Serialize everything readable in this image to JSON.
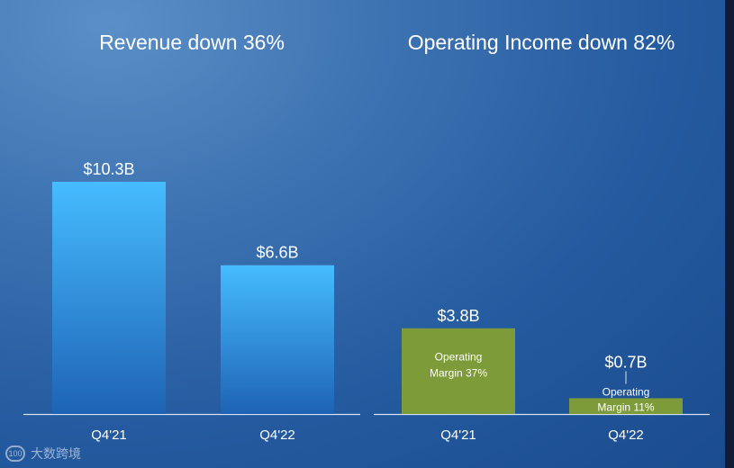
{
  "chart_data": [
    {
      "type": "bar",
      "title": "Revenue down 36%",
      "categories": [
        "Q4'21",
        "Q4'22"
      ],
      "values": [
        10.3,
        6.6
      ],
      "data_labels": [
        "$10.3B",
        "$6.6B"
      ],
      "units": "$B",
      "grid": false
    },
    {
      "type": "bar",
      "title": "Operating Income down 82%",
      "categories": [
        "Q4'21",
        "Q4'22"
      ],
      "values": [
        3.8,
        0.7
      ],
      "data_labels": [
        "$3.8B",
        "$0.7B"
      ],
      "annotations": [
        "Operating Margin 37%",
        "Operating Margin 11%"
      ],
      "units": "$B",
      "grid": false
    }
  ],
  "colors": {
    "revenue_bar_top": "#46bcff",
    "revenue_bar_bottom": "#1e63b4",
    "income_bar": "#7e9b3a",
    "axis": "#d6e2f0",
    "text": "#ffffff"
  },
  "watermark": {
    "logo": "100",
    "text": "大数跨境"
  }
}
